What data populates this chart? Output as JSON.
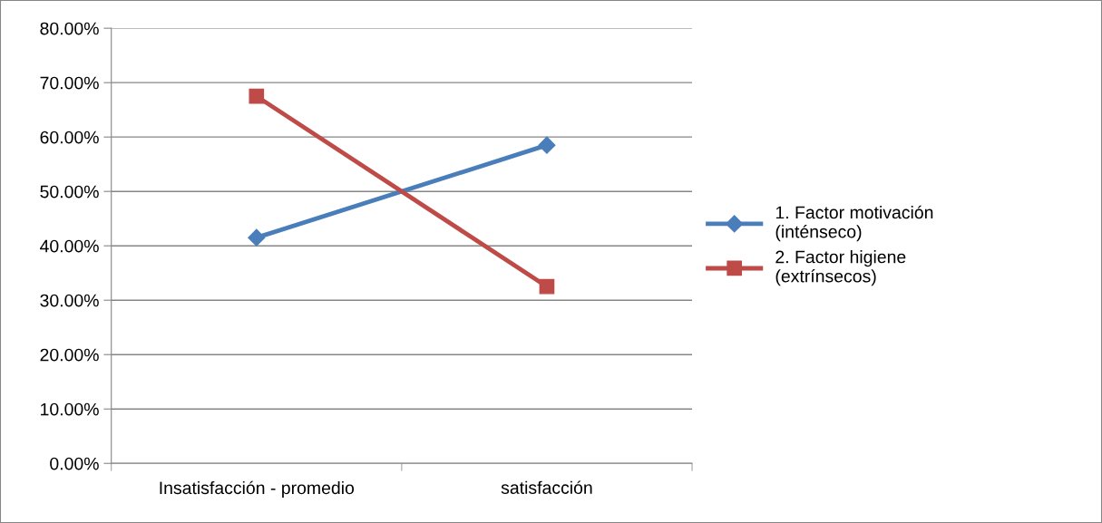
{
  "chart_data": {
    "type": "line",
    "categories": [
      "Insatisfacción - promedio",
      "satisfacción"
    ],
    "series": [
      {
        "name": "1. Factor motivación (inténseco)",
        "color": "#4a7ebb",
        "values": [
          41.5,
          58.5
        ],
        "marker": "diamond"
      },
      {
        "name": "2. Factor higiene (extrínsecos)",
        "color": "#be4b48",
        "values": [
          67.5,
          32.5
        ],
        "marker": "square"
      }
    ],
    "ylim": [
      0,
      80
    ],
    "yticks": [
      {
        "value": 0,
        "label": "0.00%"
      },
      {
        "value": 10,
        "label": "10.00%"
      },
      {
        "value": 20,
        "label": "20.00%"
      },
      {
        "value": 30,
        "label": "30.00%"
      },
      {
        "value": 40,
        "label": "40.00%"
      },
      {
        "value": 50,
        "label": "50.00%"
      },
      {
        "value": 60,
        "label": "60.00%"
      },
      {
        "value": 70,
        "label": "70.00%"
      },
      {
        "value": 80,
        "label": "80.00%"
      }
    ],
    "grid": "y",
    "legend": "right",
    "line_style": "solid"
  }
}
